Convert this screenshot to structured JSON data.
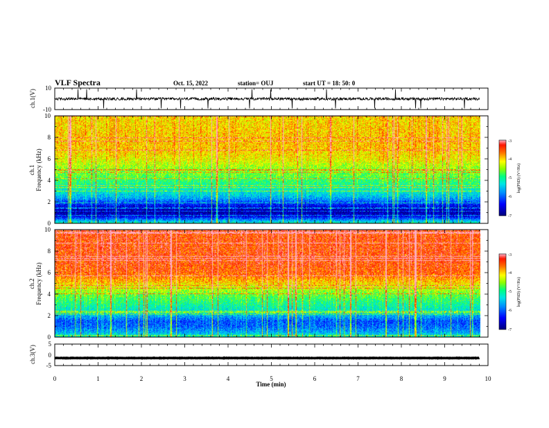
{
  "header": {
    "title": "VLF Spectra",
    "date": "Oct. 15, 2022",
    "station": "station= OUJ",
    "start": "start  UT =   18: 50: 0"
  },
  "colors": {
    "low": "#00007f",
    "mid_low": "#0080ff",
    "mid": "#00ffa0",
    "mid_high": "#ffff00",
    "high": "#ff2000",
    "peak": "#ffb0c0"
  },
  "chart_data": [
    {
      "type": "line",
      "panel": "ch1-waveform",
      "ylabel": "ch.1(V)",
      "ylim": [
        -10,
        10
      ],
      "y_tick_labels": [
        "10",
        "-10"
      ],
      "x_range_min": [
        0,
        9.8
      ],
      "baseline_v": 0,
      "noise_amplitude_v": 2.5
    },
    {
      "type": "heatmap",
      "panel": "ch1-spectrogram",
      "ylabel_line1": "ch.1",
      "ylabel_line2": "Frequency (kHz)",
      "ylim": [
        0,
        10
      ],
      "y_tick_labels": [
        "0",
        "2",
        "4",
        "6",
        "8",
        "10"
      ],
      "x_range_min": [
        0,
        9.8
      ],
      "log_psd_profile": {
        "freq_khz": [
          0,
          0.3,
          0.6,
          1.0,
          1.5,
          2.0,
          2.5,
          3.0,
          3.5,
          4.0,
          4.5,
          5.0,
          5.5,
          6.0,
          7.0,
          8.0,
          10.0
        ],
        "level": [
          -5.0,
          -5.6,
          -6.3,
          -6.8,
          -6.6,
          -6.0,
          -5.5,
          -5.2,
          -5.0,
          -4.8,
          -4.6,
          -4.5,
          -4.3,
          -4.1,
          -3.9,
          -3.9,
          -4.0
        ]
      },
      "colorbar": {
        "label": "log(PSD) (V²/Hz)",
        "range": [
          -7,
          -3
        ],
        "tick_labels": [
          "-3",
          "-4",
          "-5",
          "-6",
          "-7"
        ]
      }
    },
    {
      "type": "heatmap",
      "panel": "ch2-spectrogram",
      "ylabel_line1": "ch.2",
      "ylabel_line2": "Frequency (kHz)",
      "ylim": [
        0,
        10
      ],
      "y_tick_labels": [
        "0",
        "2",
        "4",
        "6",
        "8",
        "10"
      ],
      "x_range_min": [
        0,
        9.8
      ],
      "log_psd_profile": {
        "freq_khz": [
          0,
          0.5,
          1.0,
          1.5,
          2.0,
          2.5,
          3.0,
          3.5,
          4.0,
          4.5,
          5.0,
          5.5,
          6.0,
          7.0,
          8.0,
          10.0
        ],
        "level": [
          -5.0,
          -5.6,
          -5.9,
          -6.0,
          -5.6,
          -5.2,
          -5.0,
          -4.8,
          -4.6,
          -4.3,
          -4.0,
          -3.7,
          -3.5,
          -3.4,
          -3.4,
          -3.4
        ]
      },
      "colorbar": {
        "label": "log(PSD) (V²/Hz)",
        "range": [
          -7,
          -3
        ],
        "tick_labels": [
          "-3",
          "-4",
          "-5",
          "-6",
          "-7"
        ]
      }
    },
    {
      "type": "line",
      "panel": "ch3-waveform",
      "ylabel": "ch.3(V)",
      "ylim": [
        -5,
        5
      ],
      "y_tick_labels": [
        "5",
        "0",
        "-5"
      ],
      "x_range_min": [
        0,
        9.8
      ],
      "baseline_v": -1.5,
      "noise_amplitude_v": 0.15
    }
  ],
  "x_axis": {
    "label": "Time  (min)",
    "range": [
      0,
      10
    ],
    "tick_labels": [
      "0",
      "1",
      "2",
      "3",
      "4",
      "5",
      "6",
      "7",
      "8",
      "9",
      "10"
    ]
  }
}
